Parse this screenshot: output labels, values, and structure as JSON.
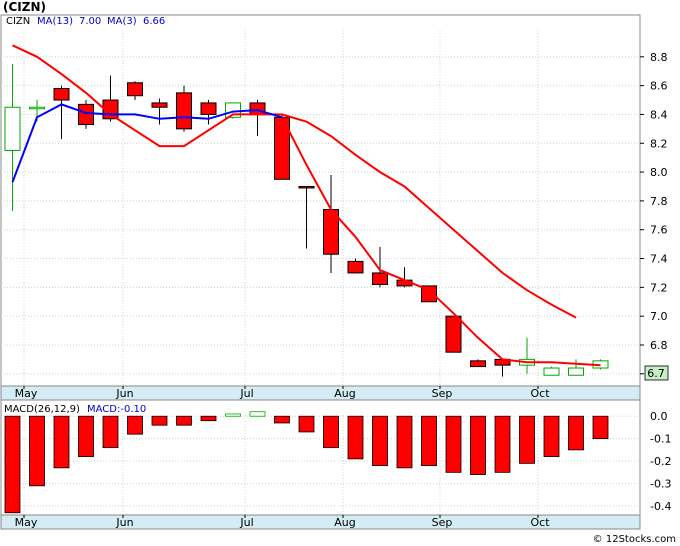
{
  "title": "(CIZN)",
  "footer": "© 12Stocks.com",
  "colors": {
    "ma_long": "#ff0000",
    "ma_short": "#0000ff",
    "down": "#ff0000",
    "up": "#00aa00",
    "axis_band": "#d4ecf4",
    "last_label": "#c8f0c8"
  },
  "chart_data": [
    {
      "type": "candlestick",
      "legend": {
        "symbol": "CIZN",
        "ma_long_label": "MA(13)",
        "ma_long_value": "7.00",
        "ma_short_label": "MA(3)",
        "ma_short_value": "6.66"
      },
      "ylim": [
        6.55,
        9.0
      ],
      "yticks": [
        {
          "v": 8.8,
          "label": "8.8"
        },
        {
          "v": 8.6,
          "label": "8.6"
        },
        {
          "v": 8.4,
          "label": "8.4"
        },
        {
          "v": 8.2,
          "label": "8.2"
        },
        {
          "v": 8.0,
          "label": "8.0"
        },
        {
          "v": 7.8,
          "label": "7.8"
        },
        {
          "v": 7.6,
          "label": "7.6"
        },
        {
          "v": 7.4,
          "label": "7.4"
        },
        {
          "v": 7.2,
          "label": "7.2"
        },
        {
          "v": 7.0,
          "label": "7.0"
        },
        {
          "v": 6.8,
          "label": "6.8"
        },
        {
          "v": 6.6,
          "label": "6.6"
        }
      ],
      "last_value": "6.7",
      "x_labels": [
        "May",
        "Jun",
        "Jul",
        "Aug",
        "Sep",
        "Oct"
      ],
      "candles": [
        {
          "o": 8.15,
          "h": 8.75,
          "l": 7.73,
          "c": 8.45
        },
        {
          "o": 8.45,
          "h": 8.5,
          "l": 8.35,
          "c": 8.45
        },
        {
          "o": 8.58,
          "h": 8.6,
          "l": 8.23,
          "c": 8.5
        },
        {
          "o": 8.47,
          "h": 8.5,
          "l": 8.3,
          "c": 8.33
        },
        {
          "o": 8.5,
          "h": 8.67,
          "l": 8.35,
          "c": 8.37
        },
        {
          "o": 8.62,
          "h": 8.63,
          "l": 8.5,
          "c": 8.53
        },
        {
          "o": 8.48,
          "h": 8.51,
          "l": 8.33,
          "c": 8.45
        },
        {
          "o": 8.55,
          "h": 8.6,
          "l": 8.28,
          "c": 8.3
        },
        {
          "o": 8.48,
          "h": 8.5,
          "l": 8.33,
          "c": 8.4
        },
        {
          "o": 8.38,
          "h": 8.48,
          "l": 8.37,
          "c": 8.48
        },
        {
          "o": 8.48,
          "h": 8.5,
          "l": 8.25,
          "c": 8.4
        },
        {
          "o": 8.38,
          "h": 8.4,
          "l": 7.95,
          "c": 7.95
        },
        {
          "o": 7.9,
          "h": 7.9,
          "l": 7.47,
          "c": 7.89
        },
        {
          "o": 7.74,
          "h": 7.98,
          "l": 7.3,
          "c": 7.43
        },
        {
          "o": 7.38,
          "h": 7.4,
          "l": 7.3,
          "c": 7.3
        },
        {
          "o": 7.3,
          "h": 7.48,
          "l": 7.2,
          "c": 7.22
        },
        {
          "o": 7.25,
          "h": 7.34,
          "l": 7.2,
          "c": 7.21
        },
        {
          "o": 7.21,
          "h": 7.21,
          "l": 7.1,
          "c": 7.1
        },
        {
          "o": 7.0,
          "h": 7.0,
          "l": 6.75,
          "c": 6.75
        },
        {
          "o": 6.69,
          "h": 6.7,
          "l": 6.65,
          "c": 6.65
        },
        {
          "o": 6.7,
          "h": 6.7,
          "l": 6.58,
          "c": 6.66
        },
        {
          "o": 6.66,
          "h": 6.85,
          "l": 6.6,
          "c": 6.7
        },
        {
          "o": 6.59,
          "h": 6.65,
          "l": 6.6,
          "c": 6.64
        },
        {
          "o": 6.59,
          "h": 6.7,
          "l": 6.59,
          "c": 6.64
        },
        {
          "o": 6.64,
          "h": 6.7,
          "l": 6.63,
          "c": 6.69
        }
      ],
      "ma_long": [
        {
          "i": 0,
          "v": 8.88
        },
        {
          "i": 1,
          "v": 8.8
        },
        {
          "i": 2,
          "v": 8.68
        },
        {
          "i": 3,
          "v": 8.55
        },
        {
          "i": 4,
          "v": 8.4
        },
        {
          "i": 6,
          "v": 8.18
        },
        {
          "i": 7,
          "v": 8.18
        },
        {
          "i": 9,
          "v": 8.4
        },
        {
          "i": 10,
          "v": 8.4
        },
        {
          "i": 11,
          "v": 8.4
        },
        {
          "i": 12,
          "v": 8.35
        },
        {
          "i": 13,
          "v": 8.25
        },
        {
          "i": 14,
          "v": 8.12
        },
        {
          "i": 15,
          "v": 8.0
        },
        {
          "i": 16,
          "v": 7.9
        },
        {
          "i": 17,
          "v": 7.75
        },
        {
          "i": 18,
          "v": 7.6
        },
        {
          "i": 19,
          "v": 7.45
        },
        {
          "i": 20,
          "v": 7.3
        },
        {
          "i": 21,
          "v": 7.18
        },
        {
          "i": 22,
          "v": 7.08
        },
        {
          "i": 23,
          "v": 6.99
        }
      ],
      "ma_short": [
        {
          "i": 0,
          "v": 7.93
        },
        {
          "i": 1,
          "v": 8.38
        },
        {
          "i": 2,
          "v": 8.47
        },
        {
          "i": 3,
          "v": 8.41
        },
        {
          "i": 4,
          "v": 8.4
        },
        {
          "i": 5,
          "v": 8.4
        },
        {
          "i": 6,
          "v": 8.37
        },
        {
          "i": 7,
          "v": 8.38
        },
        {
          "i": 8,
          "v": 8.37
        },
        {
          "i": 9,
          "v": 8.42
        },
        {
          "i": 10,
          "v": 8.43
        },
        {
          "i": 11,
          "v": 8.38
        },
        {
          "i": 12,
          "v": 8.05
        },
        {
          "i": 13,
          "v": 7.74
        },
        {
          "i": 14,
          "v": 7.55
        },
        {
          "i": 15,
          "v": 7.32
        },
        {
          "i": 16,
          "v": 7.25
        },
        {
          "i": 17,
          "v": 7.18
        },
        {
          "i": 18,
          "v": 7.02
        },
        {
          "i": 19,
          "v": 6.85
        },
        {
          "i": 20,
          "v": 6.7
        },
        {
          "i": 21,
          "v": 6.68
        },
        {
          "i": 22,
          "v": 6.68
        },
        {
          "i": 23,
          "v": 6.67
        },
        {
          "i": 24,
          "v": 6.66
        }
      ],
      "ma_short_blue_until": 11
    },
    {
      "type": "bar",
      "label": "MACD(26,12,9)",
      "value_label": "MACD:-0.10",
      "ylim": [
        -0.44,
        0.05
      ],
      "yticks": [
        {
          "v": 0.0,
          "label": "0.0"
        },
        {
          "v": -0.1,
          "label": "-0.1"
        },
        {
          "v": -0.2,
          "label": "-0.2"
        },
        {
          "v": -0.3,
          "label": "-0.3"
        },
        {
          "v": -0.4,
          "label": "-0.4"
        }
      ],
      "x_labels": [
        "May",
        "Jun",
        "Jul",
        "Aug",
        "Sep",
        "Oct"
      ],
      "values": [
        -0.43,
        -0.31,
        -0.23,
        -0.18,
        -0.14,
        -0.08,
        -0.04,
        -0.04,
        -0.02,
        0.01,
        0.02,
        -0.03,
        -0.07,
        -0.14,
        -0.19,
        -0.22,
        -0.23,
        -0.22,
        -0.25,
        -0.26,
        -0.25,
        -0.21,
        -0.18,
        -0.15,
        -0.1
      ]
    }
  ]
}
